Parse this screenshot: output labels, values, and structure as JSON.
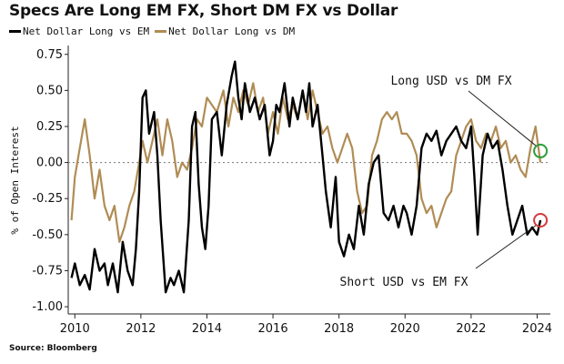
{
  "chart_data": {
    "type": "line",
    "title": "Specs Are Long EM FX, Short DM FX vs Dollar",
    "ylabel": "% of Open Interest",
    "xlim": [
      2009.8,
      2024.4
    ],
    "ylim": [
      -1.05,
      0.78
    ],
    "yticks": [
      "0.75",
      "0.50",
      "0.25",
      "0.00",
      "-0.25",
      "-0.50",
      "-0.75",
      "-1.00"
    ],
    "ytick_values": [
      0.75,
      0.5,
      0.25,
      0.0,
      -0.25,
      -0.5,
      -0.75,
      -1.0
    ],
    "xticks": [
      "2010",
      "2012",
      "2014",
      "2016",
      "2018",
      "2020",
      "2022",
      "2024"
    ],
    "xtick_values": [
      2010,
      2012,
      2014,
      2016,
      2018,
      2020,
      2022,
      2024
    ],
    "zero_line": true,
    "legend_placement": "top-left",
    "series": [
      {
        "name": "Net Dollar Long vs EM",
        "color": "#000000",
        "x": [
          2009.9,
          2010.0,
          2010.15,
          2010.3,
          2010.45,
          2010.6,
          2010.75,
          2010.9,
          2011.0,
          2011.15,
          2011.3,
          2011.45,
          2011.6,
          2011.75,
          2011.85,
          2011.95,
          2012.05,
          2012.15,
          2012.25,
          2012.4,
          2012.5,
          2012.6,
          2012.75,
          2012.9,
          2013.0,
          2013.15,
          2013.3,
          2013.45,
          2013.55,
          2013.65,
          2013.75,
          2013.85,
          2013.95,
          2014.05,
          2014.15,
          2014.3,
          2014.45,
          2014.6,
          2014.75,
          2014.85,
          2014.95,
          2015.05,
          2015.15,
          2015.3,
          2015.45,
          2015.6,
          2015.75,
          2015.9,
          2016.0,
          2016.1,
          2016.2,
          2016.35,
          2016.5,
          2016.6,
          2016.75,
          2016.9,
          2017.0,
          2017.1,
          2017.2,
          2017.35,
          2017.5,
          2017.6,
          2017.75,
          2017.9,
          2018.0,
          2018.15,
          2018.3,
          2018.45,
          2018.6,
          2018.75,
          2018.9,
          2019.05,
          2019.2,
          2019.35,
          2019.5,
          2019.65,
          2019.8,
          2019.95,
          2020.05,
          2020.2,
          2020.35,
          2020.5,
          2020.65,
          2020.8,
          2020.95,
          2021.1,
          2021.25,
          2021.4,
          2021.55,
          2021.7,
          2021.85,
          2022.0,
          2022.1,
          2022.2,
          2022.35,
          2022.5,
          2022.65,
          2022.8,
          2022.95,
          2023.1,
          2023.25,
          2023.4,
          2023.55,
          2023.7,
          2023.85,
          2024.0,
          2024.1
        ],
        "values": [
          -0.8,
          -0.7,
          -0.85,
          -0.78,
          -0.88,
          -0.6,
          -0.75,
          -0.7,
          -0.85,
          -0.7,
          -0.9,
          -0.55,
          -0.75,
          -0.85,
          -0.6,
          -0.2,
          0.45,
          0.5,
          0.2,
          0.35,
          0.05,
          -0.4,
          -0.9,
          -0.8,
          -0.85,
          -0.75,
          -0.9,
          -0.4,
          0.25,
          0.35,
          -0.15,
          -0.45,
          -0.6,
          -0.3,
          0.3,
          0.35,
          0.05,
          0.4,
          0.6,
          0.7,
          0.45,
          0.3,
          0.55,
          0.35,
          0.45,
          0.3,
          0.4,
          0.05,
          0.15,
          0.4,
          0.35,
          0.55,
          0.25,
          0.45,
          0.3,
          0.5,
          0.35,
          0.55,
          0.25,
          0.4,
          0.05,
          -0.2,
          -0.45,
          -0.1,
          -0.55,
          -0.65,
          -0.5,
          -0.6,
          -0.3,
          -0.5,
          -0.15,
          0.0,
          0.05,
          -0.35,
          -0.4,
          -0.3,
          -0.45,
          -0.3,
          -0.35,
          -0.5,
          -0.3,
          0.1,
          0.2,
          0.15,
          0.22,
          0.05,
          0.15,
          0.2,
          0.25,
          0.15,
          0.1,
          0.25,
          -0.1,
          -0.5,
          0.05,
          0.2,
          0.1,
          0.15,
          -0.05,
          -0.3,
          -0.5,
          -0.4,
          -0.3,
          -0.5,
          -0.45,
          -0.5,
          -0.4
        ]
      },
      {
        "name": "Net Dollar Long vs DM",
        "color": "#b08c55",
        "x": [
          2009.9,
          2010.0,
          2010.15,
          2010.3,
          2010.45,
          2010.6,
          2010.75,
          2010.9,
          2011.05,
          2011.2,
          2011.35,
          2011.5,
          2011.65,
          2011.8,
          2011.95,
          2012.05,
          2012.2,
          2012.35,
          2012.5,
          2012.65,
          2012.8,
          2012.95,
          2013.1,
          2013.25,
          2013.4,
          2013.55,
          2013.7,
          2013.85,
          2014.0,
          2014.15,
          2014.3,
          2014.5,
          2014.65,
          2014.8,
          2014.95,
          2015.1,
          2015.25,
          2015.4,
          2015.55,
          2015.7,
          2015.85,
          2016.0,
          2016.15,
          2016.3,
          2016.45,
          2016.6,
          2016.75,
          2016.9,
          2017.05,
          2017.2,
          2017.35,
          2017.5,
          2017.65,
          2017.8,
          2017.95,
          2018.1,
          2018.25,
          2018.4,
          2018.55,
          2018.7,
          2018.85,
          2019.0,
          2019.15,
          2019.3,
          2019.45,
          2019.6,
          2019.75,
          2019.9,
          2020.05,
          2020.2,
          2020.35,
          2020.5,
          2020.65,
          2020.8,
          2020.95,
          2021.1,
          2021.25,
          2021.4,
          2021.55,
          2021.7,
          2021.85,
          2022.0,
          2022.15,
          2022.3,
          2022.45,
          2022.6,
          2022.75,
          2022.9,
          2023.05,
          2023.2,
          2023.35,
          2023.5,
          2023.65,
          2023.8,
          2023.95,
          2024.1
        ],
        "values": [
          -0.4,
          -0.1,
          0.1,
          0.3,
          0.05,
          -0.25,
          -0.05,
          -0.3,
          -0.4,
          -0.3,
          -0.55,
          -0.45,
          -0.3,
          -0.2,
          0.0,
          0.15,
          0.0,
          0.15,
          0.3,
          0.05,
          0.3,
          0.15,
          -0.1,
          0.0,
          -0.05,
          0.1,
          0.3,
          0.25,
          0.45,
          0.4,
          0.35,
          0.5,
          0.25,
          0.45,
          0.35,
          0.5,
          0.4,
          0.55,
          0.35,
          0.45,
          0.2,
          0.35,
          0.2,
          0.45,
          0.3,
          0.4,
          0.3,
          0.5,
          0.3,
          0.5,
          0.35,
          0.2,
          0.25,
          0.1,
          0.0,
          0.1,
          0.2,
          0.1,
          -0.2,
          -0.35,
          -0.3,
          0.05,
          0.15,
          0.3,
          0.35,
          0.3,
          0.35,
          0.2,
          0.2,
          0.15,
          0.05,
          -0.25,
          -0.35,
          -0.3,
          -0.45,
          -0.35,
          -0.25,
          -0.2,
          0.05,
          0.15,
          0.25,
          0.3,
          0.15,
          0.1,
          0.2,
          0.15,
          0.25,
          0.1,
          0.15,
          0.0,
          0.05,
          -0.05,
          -0.1,
          0.1,
          0.25,
          0.0
        ]
      }
    ],
    "annotations": [
      {
        "text": "Long USD vs DM FX",
        "x": 2024.1,
        "y": 0.08,
        "color": "#2e9e3a"
      },
      {
        "text": "Short USD vs EM FX",
        "x": 2024.1,
        "y": -0.4,
        "color": "#d23a3a"
      }
    ]
  },
  "source": "Source: Bloomberg"
}
